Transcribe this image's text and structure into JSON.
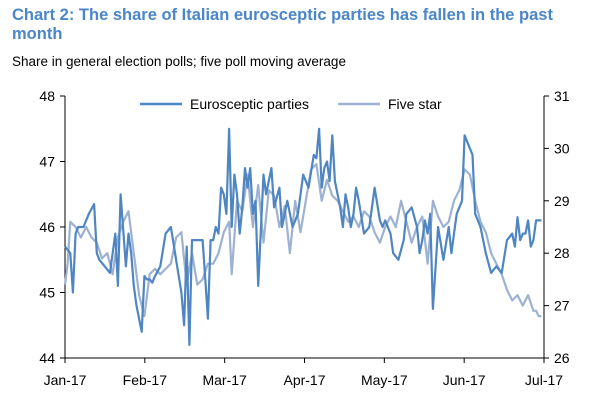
{
  "title": "Chart 2: The share of Italian eurosceptic parties has fallen in the past month",
  "subtitle": "Share in general election polls; five poll moving average",
  "colors": {
    "title": "#4a86c8",
    "euro": "#4f86c1",
    "five": "#9db2d2",
    "axis": "#000000"
  },
  "chart_data": {
    "type": "line",
    "x_tick_labels": [
      "Jan-17",
      "Feb-17",
      "Mar-17",
      "Apr-17",
      "May-17",
      "Jun-17",
      "Jul-17"
    ],
    "y_left": {
      "min": 44,
      "max": 48,
      "ticks": [
        "44",
        "45",
        "46",
        "47",
        "48"
      ]
    },
    "y_right": {
      "min": 26,
      "max": 31,
      "ticks": [
        "26",
        "27",
        "28",
        "29",
        "30",
        "31"
      ]
    },
    "legend_position": "top",
    "series": [
      {
        "name": "Eurosceptic parties",
        "axis": "left",
        "x": [
          "2017-01-01",
          "2017-01-03",
          "2017-01-04",
          "2017-01-05",
          "2017-01-06",
          "2017-01-08",
          "2017-01-10",
          "2017-01-12",
          "2017-01-13",
          "2017-01-14",
          "2017-01-16",
          "2017-01-18",
          "2017-01-20",
          "2017-01-21",
          "2017-01-22",
          "2017-01-24",
          "2017-01-25",
          "2017-01-26",
          "2017-01-27",
          "2017-01-28",
          "2017-01-30",
          "2017-01-31",
          "2017-02-01",
          "2017-02-02",
          "2017-02-03",
          "2017-02-04",
          "2017-02-06",
          "2017-02-08",
          "2017-02-10",
          "2017-02-12",
          "2017-02-14",
          "2017-02-15",
          "2017-02-16",
          "2017-02-17",
          "2017-02-18",
          "2017-02-19",
          "2017-02-20",
          "2017-02-22",
          "2017-02-23",
          "2017-02-24",
          "2017-02-25",
          "2017-02-26",
          "2017-02-27",
          "2017-02-28",
          "2017-03-01",
          "2017-03-02",
          "2017-03-03",
          "2017-03-04",
          "2017-03-05",
          "2017-03-06",
          "2017-03-07",
          "2017-03-08",
          "2017-03-09",
          "2017-03-10",
          "2017-03-11",
          "2017-03-12",
          "2017-03-13",
          "2017-03-14",
          "2017-03-15",
          "2017-03-17",
          "2017-03-18",
          "2017-03-20",
          "2017-03-21",
          "2017-03-23",
          "2017-03-24",
          "2017-03-26",
          "2017-03-28",
          "2017-03-30",
          "2017-04-01",
          "2017-04-03",
          "2017-04-05",
          "2017-04-06",
          "2017-04-07",
          "2017-04-08",
          "2017-04-09",
          "2017-04-10",
          "2017-04-11",
          "2017-04-12",
          "2017-04-13",
          "2017-04-14",
          "2017-04-15",
          "2017-04-16",
          "2017-04-17",
          "2017-04-18",
          "2017-04-19",
          "2017-04-20",
          "2017-04-21",
          "2017-04-22",
          "2017-04-24",
          "2017-04-26",
          "2017-04-28",
          "2017-04-30",
          "2017-05-01",
          "2017-05-02",
          "2017-05-04",
          "2017-05-05",
          "2017-05-07",
          "2017-05-09",
          "2017-05-10",
          "2017-05-12",
          "2017-05-14",
          "2017-05-15",
          "2017-05-16",
          "2017-05-17",
          "2017-05-18",
          "2017-05-19",
          "2017-05-20",
          "2017-05-22",
          "2017-05-24",
          "2017-05-26",
          "2017-05-27",
          "2017-05-28",
          "2017-05-29",
          "2017-05-31",
          "2017-06-01",
          "2017-06-02",
          "2017-06-04",
          "2017-06-05",
          "2017-06-07",
          "2017-06-09",
          "2017-06-11",
          "2017-06-13",
          "2017-06-15",
          "2017-06-17",
          "2017-06-19",
          "2017-06-20",
          "2017-06-21",
          "2017-06-22",
          "2017-06-23",
          "2017-06-24",
          "2017-06-25",
          "2017-06-26",
          "2017-06-27",
          "2017-06-28",
          "2017-06-30"
        ],
        "values": [
          45.7,
          45.6,
          45.0,
          45.9,
          46.0,
          46.0,
          46.2,
          46.35,
          45.6,
          45.5,
          45.4,
          45.3,
          45.9,
          45.1,
          46.5,
          45.4,
          45.9,
          45.6,
          45.1,
          44.8,
          44.4,
          45.25,
          45.2,
          45.2,
          45.15,
          45.25,
          45.4,
          45.9,
          46.0,
          45.5,
          45.0,
          44.5,
          45.7,
          44.2,
          45.8,
          45.8,
          45.8,
          45.8,
          45.2,
          44.6,
          45.8,
          45.8,
          46.0,
          45.9,
          46.6,
          46.5,
          46.2,
          47.5,
          46.0,
          46.8,
          46.5,
          45.9,
          46.3,
          46.9,
          46.6,
          46.9,
          46.2,
          46.4,
          45.1,
          46.8,
          46.5,
          46.9,
          46.3,
          46.6,
          46.0,
          46.4,
          46.0,
          46.2,
          46.8,
          46.6,
          47.1,
          47.05,
          47.5,
          46.6,
          46.9,
          47.0,
          46.7,
          47.4,
          46.7,
          46.5,
          46.3,
          46.0,
          46.5,
          46.3,
          46.0,
          46.2,
          46.6,
          46.4,
          45.9,
          46.0,
          46.6,
          46.1,
          46.0,
          46.1,
          45.9,
          45.6,
          45.5,
          45.8,
          46.2,
          46.3,
          46.0,
          45.6,
          45.8,
          46.1,
          45.9,
          46.2,
          44.75,
          46.0,
          45.5,
          46.0,
          45.6,
          45.9,
          46.2,
          46.4,
          47.4,
          47.3,
          47.1,
          46.2,
          46.0,
          45.6,
          45.3,
          45.4,
          45.3,
          45.8,
          45.9,
          45.7,
          46.15,
          45.8,
          45.9,
          45.9,
          46.1,
          45.7,
          45.8,
          46.1,
          46.1
        ]
      },
      {
        "name": "Five star",
        "axis": "right",
        "x": [
          "2017-01-01",
          "2017-01-02",
          "2017-01-03",
          "2017-01-05",
          "2017-01-07",
          "2017-01-09",
          "2017-01-11",
          "2017-01-13",
          "2017-01-15",
          "2017-01-17",
          "2017-01-19",
          "2017-01-21",
          "2017-01-23",
          "2017-01-25",
          "2017-01-27",
          "2017-01-29",
          "2017-01-31",
          "2017-02-02",
          "2017-02-04",
          "2017-02-06",
          "2017-02-08",
          "2017-02-10",
          "2017-02-12",
          "2017-02-14",
          "2017-02-16",
          "2017-02-18",
          "2017-02-20",
          "2017-02-22",
          "2017-02-24",
          "2017-02-26",
          "2017-02-28",
          "2017-03-02",
          "2017-03-04",
          "2017-03-05",
          "2017-03-07",
          "2017-03-09",
          "2017-03-11",
          "2017-03-13",
          "2017-03-15",
          "2017-03-17",
          "2017-03-19",
          "2017-03-21",
          "2017-03-23",
          "2017-03-25",
          "2017-03-27",
          "2017-03-29",
          "2017-03-31",
          "2017-04-02",
          "2017-04-04",
          "2017-04-06",
          "2017-04-08",
          "2017-04-10",
          "2017-04-12",
          "2017-04-14",
          "2017-04-16",
          "2017-04-18",
          "2017-04-20",
          "2017-04-22",
          "2017-04-24",
          "2017-04-26",
          "2017-04-28",
          "2017-04-30",
          "2017-05-02",
          "2017-05-04",
          "2017-05-06",
          "2017-05-08",
          "2017-05-10",
          "2017-05-12",
          "2017-05-14",
          "2017-05-16",
          "2017-05-18",
          "2017-05-20",
          "2017-05-22",
          "2017-05-24",
          "2017-05-26",
          "2017-05-28",
          "2017-05-30",
          "2017-06-01",
          "2017-06-03",
          "2017-06-05",
          "2017-06-07",
          "2017-06-09",
          "2017-06-11",
          "2017-06-13",
          "2017-06-15",
          "2017-06-17",
          "2017-06-19",
          "2017-06-21",
          "2017-06-23",
          "2017-06-25",
          "2017-06-27",
          "2017-06-28",
          "2017-06-29",
          "2017-06-30"
        ],
        "values": [
          27.4,
          27.8,
          28.6,
          28.5,
          28.3,
          28.5,
          28.3,
          28.2,
          27.9,
          28.0,
          27.6,
          28.3,
          28.6,
          28.8,
          28.0,
          27.2,
          26.8,
          27.6,
          27.7,
          27.6,
          27.7,
          27.8,
          28.3,
          28.4,
          27.4,
          28.0,
          27.4,
          27.5,
          27.8,
          27.8,
          28.0,
          28.4,
          28.6,
          27.6,
          29.0,
          28.8,
          29.5,
          28.5,
          29.3,
          28.2,
          29.2,
          29.1,
          28.5,
          28.9,
          28.0,
          29.0,
          28.4,
          29.0,
          29.6,
          29.7,
          29.0,
          29.4,
          29.1,
          29.0,
          28.8,
          28.6,
          28.7,
          28.5,
          28.8,
          28.7,
          28.4,
          28.2,
          28.5,
          28.7,
          28.5,
          29.0,
          28.6,
          28.2,
          28.5,
          28.7,
          27.8,
          29.0,
          28.7,
          28.5,
          28.6,
          29.0,
          29.2,
          29.6,
          29.5,
          29.0,
          28.6,
          28.4,
          28.0,
          27.8,
          27.6,
          27.3,
          27.1,
          27.2,
          27.0,
          27.2,
          26.9,
          26.9,
          26.8,
          26.8
        ]
      }
    ]
  }
}
